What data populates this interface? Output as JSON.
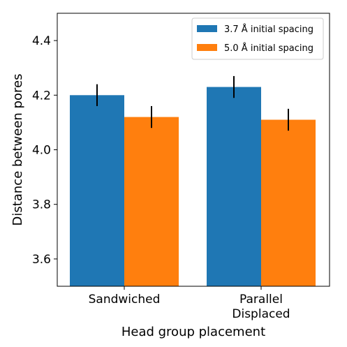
{
  "chart_data": {
    "type": "bar",
    "categories": [
      [
        "Sandwiched"
      ],
      [
        "Parallel",
        "Displaced"
      ]
    ],
    "series": [
      {
        "name": "3.7 Å initial spacing",
        "values": [
          4.2,
          4.23
        ],
        "errors": [
          0.04,
          0.04
        ],
        "color": "#1f77b4"
      },
      {
        "name": "5.0 Å initial spacing",
        "values": [
          4.12,
          4.11
        ],
        "errors": [
          0.04,
          0.04
        ],
        "color": "#ff7f0e"
      }
    ],
    "xlabel": "Head group placement",
    "ylabel": "Distance between pores",
    "ylim": [
      3.5,
      4.5
    ],
    "yticks": [
      3.6,
      3.8,
      4.0,
      4.2,
      4.4
    ],
    "ytick_labels": [
      "3.6",
      "3.8",
      "4.0",
      "4.2",
      "4.4"
    ],
    "legend_position": "top-right",
    "grid": false
  }
}
